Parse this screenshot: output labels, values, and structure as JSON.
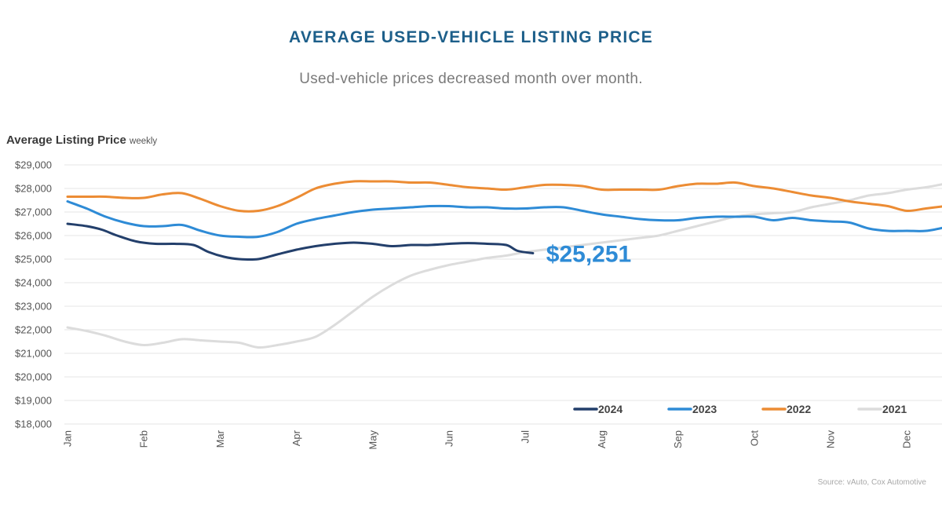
{
  "header": {
    "title": "AVERAGE USED-VEHICLE LISTING PRICE",
    "subtitle": "Used-vehicle prices decreased month over month."
  },
  "chart_label": {
    "main": "Average Listing Price",
    "unit": "weekly"
  },
  "source": "Source: vAuto, Cox Automotive",
  "colors": {
    "s2024": "#233f6b",
    "s2023": "#2e8bd6",
    "s2022": "#ec8c34",
    "s2021": "#dcdcdc",
    "callout": "#2e8bd6",
    "grid": "#e6e6e6",
    "axis_text": "#555555"
  },
  "chart_data": {
    "type": "line",
    "title": "AVERAGE USED-VEHICLE LISTING PRICE",
    "subtitle": "Used-vehicle prices decreased month over month.",
    "ylabel": "Average Listing Price weekly",
    "xlabel": "",
    "ylim": [
      18000,
      29000
    ],
    "xlim": [
      0,
      11.5
    ],
    "y_ticks": [
      29000,
      28000,
      27000,
      26000,
      25000,
      24000,
      23000,
      22000,
      21000,
      20000,
      19000,
      18000
    ],
    "y_tick_labels": [
      "$29,000",
      "$28,000",
      "$27,000",
      "$26,000",
      "$25,000",
      "$24,000",
      "$23,000",
      "$22,000",
      "$21,000",
      "$20,000",
      "$19,000",
      "$18,000"
    ],
    "categories": [
      "Jan",
      "Feb",
      "Mar",
      "Apr",
      "May",
      "Jun",
      "Jul",
      "Aug",
      "Sep",
      "Oct",
      "Nov",
      "Dec"
    ],
    "grid": true,
    "legend_position": "bottom-right",
    "annotation": {
      "text": "$25,251",
      "series": "2024",
      "x": 6.15,
      "y": 25251
    },
    "series": [
      {
        "name": "2024",
        "color_key": "s2024",
        "x": [
          0,
          0.25,
          0.45,
          0.65,
          0.9,
          1.15,
          1.4,
          1.65,
          1.85,
          2.05,
          2.25,
          2.5,
          2.75,
          3.0,
          3.25,
          3.5,
          3.75,
          4.0,
          4.25,
          4.5,
          4.75,
          5.0,
          5.25,
          5.5,
          5.75,
          5.9,
          6.1
        ],
        "values": [
          26500,
          26400,
          26250,
          26000,
          25750,
          25650,
          25650,
          25600,
          25300,
          25100,
          25000,
          25000,
          25200,
          25400,
          25550,
          25650,
          25700,
          25650,
          25550,
          25600,
          25600,
          25650,
          25680,
          25650,
          25600,
          25350,
          25251
        ]
      },
      {
        "name": "2023",
        "color_key": "s2023",
        "x": [
          0,
          0.25,
          0.5,
          0.75,
          1.0,
          1.25,
          1.5,
          1.75,
          2.0,
          2.25,
          2.5,
          2.75,
          3.0,
          3.25,
          3.5,
          3.75,
          4.0,
          4.25,
          4.5,
          4.75,
          5.0,
          5.25,
          5.5,
          5.75,
          6.0,
          6.25,
          6.5,
          6.75,
          7.0,
          7.25,
          7.5,
          7.75,
          8.0,
          8.25,
          8.5,
          8.75,
          9.0,
          9.25,
          9.5,
          9.75,
          10.0,
          10.25,
          10.5,
          10.75,
          11.0,
          11.25,
          11.5
        ],
        "values": [
          27450,
          27150,
          26800,
          26550,
          26400,
          26400,
          26450,
          26200,
          26000,
          25950,
          25950,
          26150,
          26500,
          26700,
          26850,
          27000,
          27100,
          27150,
          27200,
          27250,
          27250,
          27200,
          27200,
          27150,
          27150,
          27200,
          27200,
          27050,
          26900,
          26800,
          26700,
          26650,
          26650,
          26750,
          26800,
          26800,
          26800,
          26650,
          26750,
          26650,
          26600,
          26550,
          26300,
          26200,
          26200,
          26200,
          26350
        ]
      },
      {
        "name": "2022",
        "color_key": "s2022",
        "x": [
          0,
          0.25,
          0.5,
          0.75,
          1.0,
          1.25,
          1.5,
          1.75,
          2.0,
          2.25,
          2.5,
          2.75,
          3.0,
          3.25,
          3.5,
          3.75,
          4.0,
          4.25,
          4.5,
          4.75,
          5.0,
          5.25,
          5.5,
          5.75,
          6.0,
          6.25,
          6.5,
          6.75,
          7.0,
          7.25,
          7.5,
          7.75,
          8.0,
          8.25,
          8.5,
          8.75,
          9.0,
          9.25,
          9.5,
          9.75,
          10.0,
          10.25,
          10.5,
          10.75,
          11.0,
          11.25,
          11.5
        ],
        "values": [
          27650,
          27650,
          27650,
          27600,
          27600,
          27750,
          27800,
          27550,
          27250,
          27050,
          27050,
          27250,
          27600,
          28000,
          28200,
          28300,
          28300,
          28300,
          28250,
          28250,
          28150,
          28050,
          28000,
          27950,
          28050,
          28150,
          28150,
          28100,
          27950,
          27950,
          27950,
          27950,
          28100,
          28200,
          28200,
          28250,
          28100,
          28000,
          27850,
          27700,
          27600,
          27450,
          27350,
          27250,
          27050,
          27150,
          27250
        ]
      },
      {
        "name": "2021",
        "color_key": "s2021",
        "x": [
          0,
          0.25,
          0.5,
          0.75,
          1.0,
          1.25,
          1.5,
          1.75,
          2.0,
          2.25,
          2.5,
          2.75,
          3.0,
          3.25,
          3.5,
          3.75,
          4.0,
          4.25,
          4.5,
          4.75,
          5.0,
          5.25,
          5.5,
          5.75,
          6.0,
          6.25,
          6.5,
          6.75,
          7.0,
          7.25,
          7.5,
          7.75,
          8.0,
          8.25,
          8.5,
          8.75,
          9.0,
          9.25,
          9.5,
          9.75,
          10.0,
          10.25,
          10.5,
          10.75,
          11.0,
          11.25,
          11.5
        ],
        "values": [
          22100,
          21950,
          21750,
          21500,
          21350,
          21450,
          21600,
          21550,
          21500,
          21450,
          21250,
          21350,
          21500,
          21700,
          22200,
          22800,
          23400,
          23900,
          24300,
          24550,
          24750,
          24900,
          25050,
          25150,
          25300,
          25400,
          25500,
          25600,
          25700,
          25800,
          25900,
          26000,
          26200,
          26400,
          26600,
          26800,
          26900,
          26950,
          27000,
          27200,
          27350,
          27500,
          27700,
          27800,
          27950,
          28050,
          28200
        ]
      }
    ]
  }
}
